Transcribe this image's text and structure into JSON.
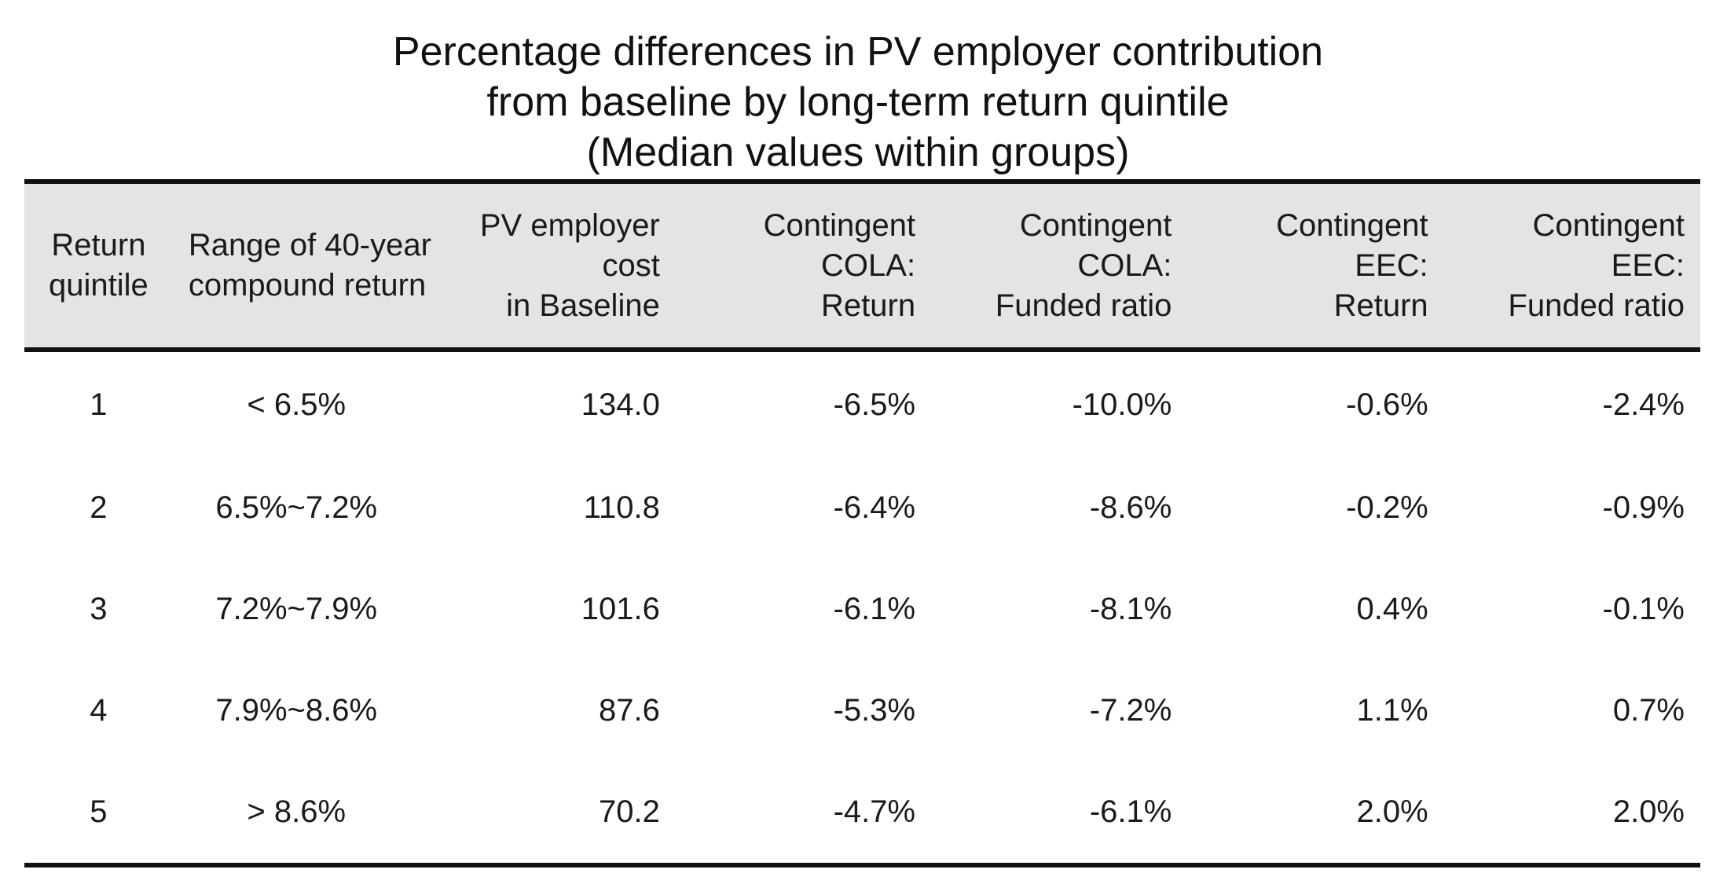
{
  "chart_data": {
    "type": "table",
    "title_lines": [
      "Percentage differences in PV employer contribution",
      "from baseline by long-term return quintile",
      "(Median values within groups)"
    ],
    "columns": [
      {
        "key": "quintile",
        "align": "center",
        "header_lines": [
          "Return",
          "quintile"
        ]
      },
      {
        "key": "range",
        "align": "center",
        "header_lines": [
          "Range of 40-year",
          "compound return"
        ]
      },
      {
        "key": "pv_cost",
        "align": "right",
        "header_lines": [
          "PV employer",
          "cost",
          "in Baseline"
        ]
      },
      {
        "key": "cola_return",
        "align": "right",
        "header_lines": [
          "Contingent",
          "COLA:",
          "Return"
        ]
      },
      {
        "key": "cola_funded",
        "align": "right",
        "header_lines": [
          "Contingent",
          "COLA:",
          "Funded ratio"
        ]
      },
      {
        "key": "eec_return",
        "align": "right",
        "header_lines": [
          "Contingent",
          "EEC:",
          "Return"
        ]
      },
      {
        "key": "eec_funded",
        "align": "right",
        "header_lines": [
          "Contingent",
          "EEC:",
          "Funded ratio"
        ]
      }
    ],
    "rows": [
      [
        "1",
        "< 6.5%",
        "134.0",
        "-6.5%",
        "-10.0%",
        "-0.6%",
        "-2.4%"
      ],
      [
        "2",
        "6.5%~7.2%",
        "110.8",
        "-6.4%",
        "-8.6%",
        "-0.2%",
        "-0.9%"
      ],
      [
        "3",
        "7.2%~7.9%",
        "101.6",
        "-6.1%",
        "-8.1%",
        "0.4%",
        "-0.1%"
      ],
      [
        "4",
        "7.9%~8.6%",
        "87.6",
        "-5.3%",
        "-7.2%",
        "1.1%",
        "0.7%"
      ],
      [
        "5",
        "> 8.6%",
        "70.2",
        "-4.7%",
        "-6.1%",
        "2.0%",
        "2.0%"
      ]
    ],
    "header_background": "#e4e4e4",
    "rule_color": "#111111"
  }
}
